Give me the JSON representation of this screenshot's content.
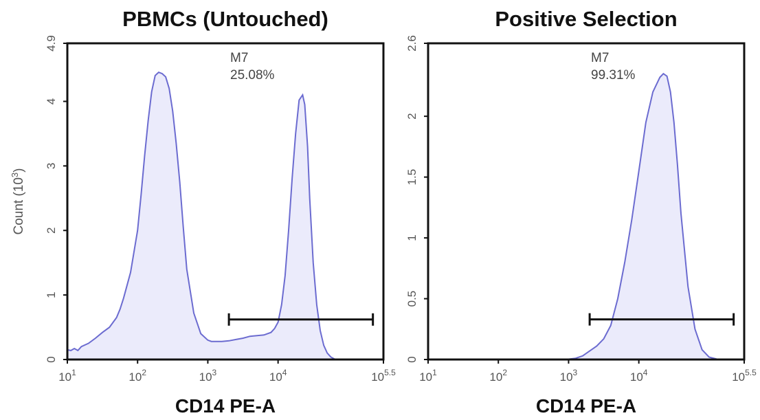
{
  "chart_data": [
    {
      "type": "area",
      "title": "PBMCs (Untouched)",
      "xlabel": "CD14 PE-A",
      "ylabel": "Count (10^3)",
      "ylabel_parts": {
        "base": "Count (10",
        "exp": "3",
        "close": ")"
      },
      "x_scale": "log10",
      "xlim_log10": [
        1,
        5.5
      ],
      "ylim": [
        0,
        4.9
      ],
      "x_ticks": [
        {
          "v": 1,
          "base": "10",
          "exp": "1"
        },
        {
          "v": 2,
          "base": "10",
          "exp": "2"
        },
        {
          "v": 3,
          "base": "10",
          "exp": "3"
        },
        {
          "v": 4,
          "base": "10",
          "exp": "4"
        },
        {
          "v": 5.5,
          "base": "10",
          "exp": "5.5"
        }
      ],
      "y_ticks": [
        {
          "v": 0,
          "label": "0"
        },
        {
          "v": 1,
          "label": "1"
        },
        {
          "v": 2,
          "label": "2"
        },
        {
          "v": 3,
          "label": "3"
        },
        {
          "v": 4,
          "label": "4"
        },
        {
          "v": 4.9,
          "label": "4.9"
        }
      ],
      "gate": {
        "name": "M7",
        "percent": "25.08%",
        "x_start_log10": 3.3,
        "x_end_log10": 5.35,
        "y": 0.62
      },
      "x_log10": [
        1.0,
        1.05,
        1.1,
        1.15,
        1.2,
        1.3,
        1.4,
        1.5,
        1.6,
        1.7,
        1.75,
        1.8,
        1.9,
        2.0,
        2.05,
        2.1,
        2.15,
        2.2,
        2.25,
        2.3,
        2.35,
        2.4,
        2.45,
        2.5,
        2.55,
        2.6,
        2.65,
        2.7,
        2.8,
        2.9,
        3.0,
        3.05,
        3.1,
        3.2,
        3.3,
        3.4,
        3.5,
        3.6,
        3.7,
        3.8,
        3.9,
        3.95,
        4.0,
        4.05,
        4.1,
        4.15,
        4.2,
        4.25,
        4.3,
        4.35,
        4.38,
        4.42,
        4.45,
        4.5,
        4.55,
        4.6,
        4.65,
        4.7,
        4.75,
        4.8,
        4.82
      ],
      "y": [
        0.15,
        0.14,
        0.17,
        0.14,
        0.2,
        0.25,
        0.33,
        0.42,
        0.5,
        0.65,
        0.78,
        0.95,
        1.35,
        2.0,
        2.55,
        3.15,
        3.7,
        4.15,
        4.4,
        4.45,
        4.43,
        4.38,
        4.2,
        3.85,
        3.35,
        2.75,
        2.05,
        1.4,
        0.72,
        0.4,
        0.3,
        0.28,
        0.28,
        0.28,
        0.29,
        0.31,
        0.33,
        0.36,
        0.37,
        0.38,
        0.42,
        0.48,
        0.58,
        0.85,
        1.3,
        2.0,
        2.8,
        3.5,
        4.02,
        4.1,
        3.95,
        3.3,
        2.5,
        1.5,
        0.85,
        0.45,
        0.22,
        0.1,
        0.04,
        0.01,
        0.0
      ]
    },
    {
      "type": "area",
      "title": "Positive Selection",
      "xlabel": "CD14 PE-A",
      "ylabel": "",
      "x_scale": "log10",
      "xlim_log10": [
        1,
        5.5
      ],
      "ylim": [
        0,
        2.6
      ],
      "x_ticks": [
        {
          "v": 1,
          "base": "10",
          "exp": "1"
        },
        {
          "v": 2,
          "base": "10",
          "exp": "2"
        },
        {
          "v": 3,
          "base": "10",
          "exp": "3"
        },
        {
          "v": 4,
          "base": "10",
          "exp": "4"
        },
        {
          "v": 5.5,
          "base": "10",
          "exp": "5.5"
        }
      ],
      "y_ticks": [
        {
          "v": 0,
          "label": "0"
        },
        {
          "v": 0.5,
          "label": "0.5"
        },
        {
          "v": 1,
          "label": "1"
        },
        {
          "v": 1.5,
          "label": "1.5"
        },
        {
          "v": 2,
          "label": "2"
        },
        {
          "v": 2.6,
          "label": "2.6"
        }
      ],
      "gate": {
        "name": "M7",
        "percent": "99.31%",
        "x_start_log10": 3.3,
        "x_end_log10": 5.35,
        "y": 0.33
      },
      "x_log10": [
        1.0,
        2.5,
        2.9,
        3.0,
        3.1,
        3.2,
        3.3,
        3.4,
        3.5,
        3.6,
        3.7,
        3.8,
        3.9,
        4.0,
        4.1,
        4.2,
        4.3,
        4.35,
        4.4,
        4.45,
        4.5,
        4.55,
        4.6,
        4.7,
        4.8,
        4.9,
        5.0,
        5.1,
        5.12
      ],
      "y": [
        0.0,
        0.0,
        0.0,
        0.003,
        0.01,
        0.03,
        0.07,
        0.11,
        0.17,
        0.28,
        0.5,
        0.8,
        1.15,
        1.55,
        1.95,
        2.2,
        2.32,
        2.35,
        2.33,
        2.2,
        1.95,
        1.6,
        1.2,
        0.6,
        0.25,
        0.08,
        0.02,
        0.005,
        0.0
      ]
    }
  ]
}
